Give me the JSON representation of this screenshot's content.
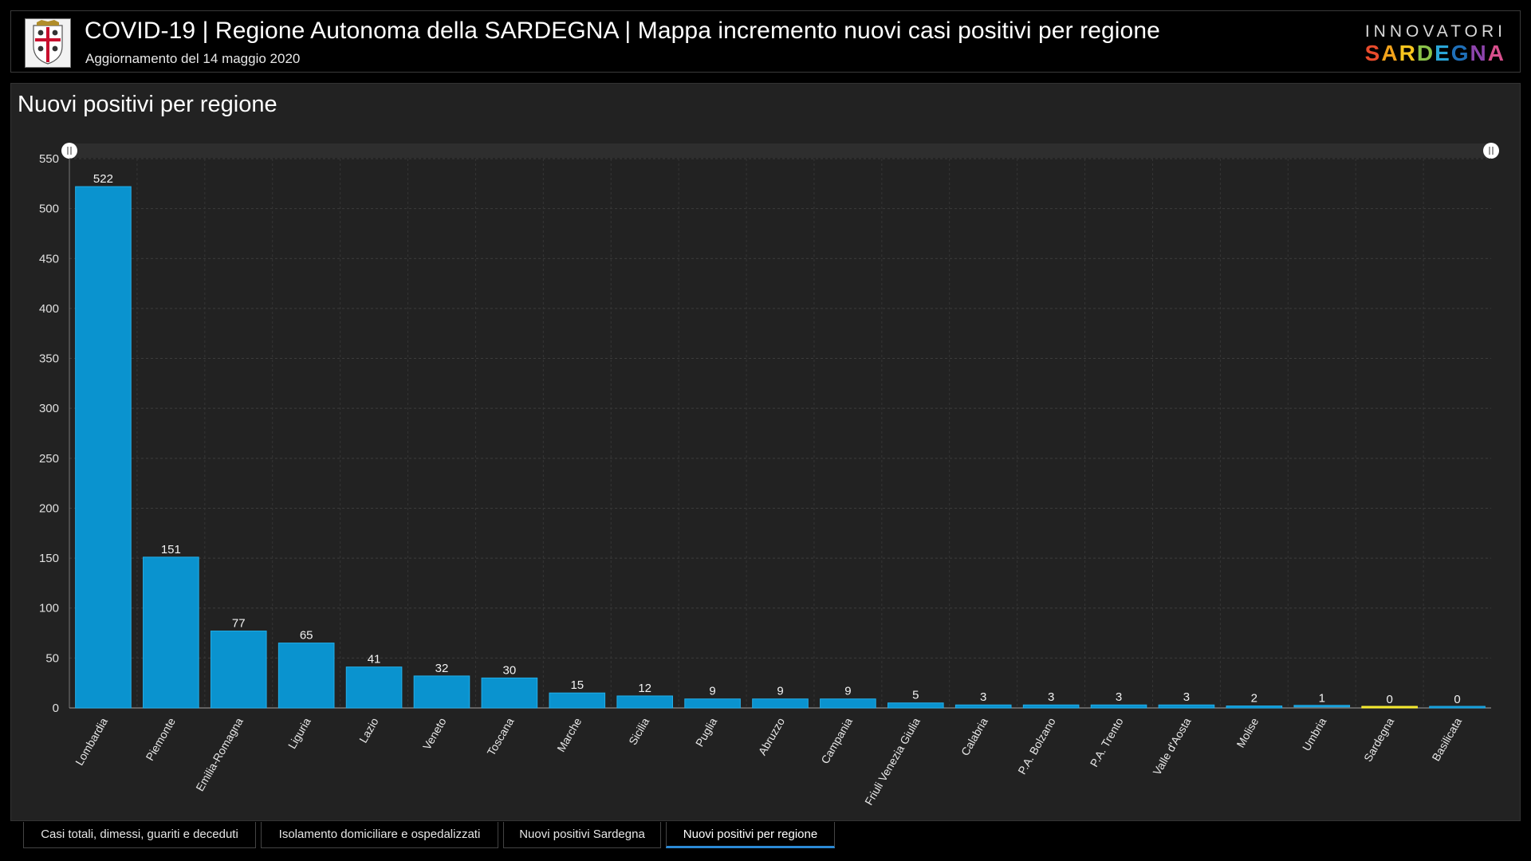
{
  "header": {
    "title": "COVID-19 | Regione Autonoma della SARDEGNA | Mappa incremento nuovi casi positivi per regione",
    "subtitle": "Aggiornamento del 14 maggio 2020",
    "logo_top": "INNOVATORI",
    "logo_letters": [
      "S",
      "A",
      "R",
      "D",
      "E",
      "G",
      "N",
      "A"
    ],
    "logo_colors": [
      "#e94b2c",
      "#f2a21b",
      "#f7c51e",
      "#8bc34a",
      "#2aa6d8",
      "#1f6fb8",
      "#8e44ad",
      "#d84f8c"
    ]
  },
  "panel": {
    "title": "Nuovi positivi per regione"
  },
  "chart_data": {
    "type": "bar",
    "categories": [
      "Lombardia",
      "Piemonte",
      "Emilia-Romagna",
      "Liguria",
      "Lazio",
      "Veneto",
      "Toscana",
      "Marche",
      "Sicilia",
      "Puglia",
      "Abruzzo",
      "Campania",
      "Friuli Venezia Giulia",
      "Calabria",
      "P.A. Bolzano",
      "P.A. Trento",
      "Valle d'Aosta",
      "Molise",
      "Umbria",
      "Sardegna",
      "Basilicata"
    ],
    "values": [
      522,
      151,
      77,
      65,
      41,
      32,
      30,
      15,
      12,
      9,
      9,
      9,
      5,
      3,
      3,
      3,
      3,
      2,
      1,
      0,
      0
    ],
    "highlight": "Sardegna",
    "ylim": [
      0,
      550
    ],
    "yticks": [
      0,
      50,
      100,
      150,
      200,
      250,
      300,
      350,
      400,
      450,
      500,
      550
    ],
    "grid": true,
    "legend": "none",
    "bar_color": "#0a93cf",
    "highlight_color": "#e8e020"
  },
  "tabs": [
    {
      "label": "Casi totali, dimessi, guariti e deceduti",
      "active": false
    },
    {
      "label": "Isolamento domiciliare e ospedalizzati",
      "active": false
    },
    {
      "label": "Nuovi positivi Sardegna",
      "active": false
    },
    {
      "label": "Nuovi positivi per regione",
      "active": true
    }
  ]
}
